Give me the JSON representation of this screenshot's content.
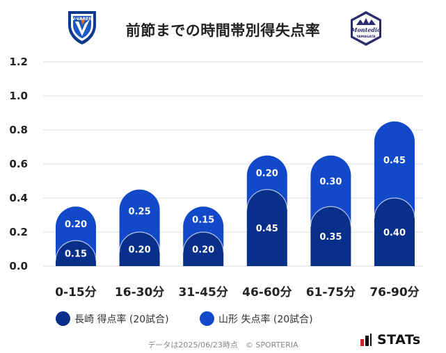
{
  "header": {
    "title": "前節までの時間帯別得失点率",
    "left_logo": {
      "icon": "v-varen-crest-icon",
      "text": "V-VAREN",
      "color": "#0b3a8c"
    },
    "right_logo": {
      "icon": "montedio-yamagata-crest-icon",
      "text": "Montedio",
      "subtext": "YAMAGATA",
      "color": "#2d2a6e"
    }
  },
  "colors": {
    "scored": "#082f8a",
    "conceded": "#1149c8",
    "grid": "#dddddd",
    "axis_text": "#222222",
    "label_text": "#ffffff"
  },
  "chart_data": {
    "type": "bar",
    "stacked": true,
    "categories": [
      "0-15分",
      "16-30分",
      "31-45分",
      "46-60分",
      "61-75分",
      "76-90分"
    ],
    "series": [
      {
        "name": "長崎 得点率 (20試合)",
        "values": [
          0.15,
          0.2,
          0.2,
          0.45,
          0.35,
          0.4
        ]
      },
      {
        "name": "山形 失点率 (20試合)",
        "values": [
          0.2,
          0.25,
          0.15,
          0.2,
          0.3,
          0.45
        ]
      }
    ],
    "data_labels": [
      [
        "0.15",
        "0.20",
        "0.20",
        "0.45",
        "0.35",
        "0.40"
      ],
      [
        "0.20",
        "0.25",
        "0.15",
        "0.20",
        "0.30",
        "0.45"
      ]
    ],
    "yticks": [
      "0.0",
      "0.2",
      "0.4",
      "0.6",
      "0.8",
      "1.0",
      "1.2"
    ],
    "ylim": [
      0,
      1.2
    ],
    "grid": true,
    "legend_position": "bottom"
  },
  "legend": {
    "scored_label": "長崎 得点率 (20試合)",
    "conceded_label": "山形 失点率 (20試合)"
  },
  "footer": {
    "note": "データは2025/06/23時点　© SPORTERIA",
    "stats_logo_text": "STATs",
    "stats_logo_icon": "stats-bars-icon"
  }
}
